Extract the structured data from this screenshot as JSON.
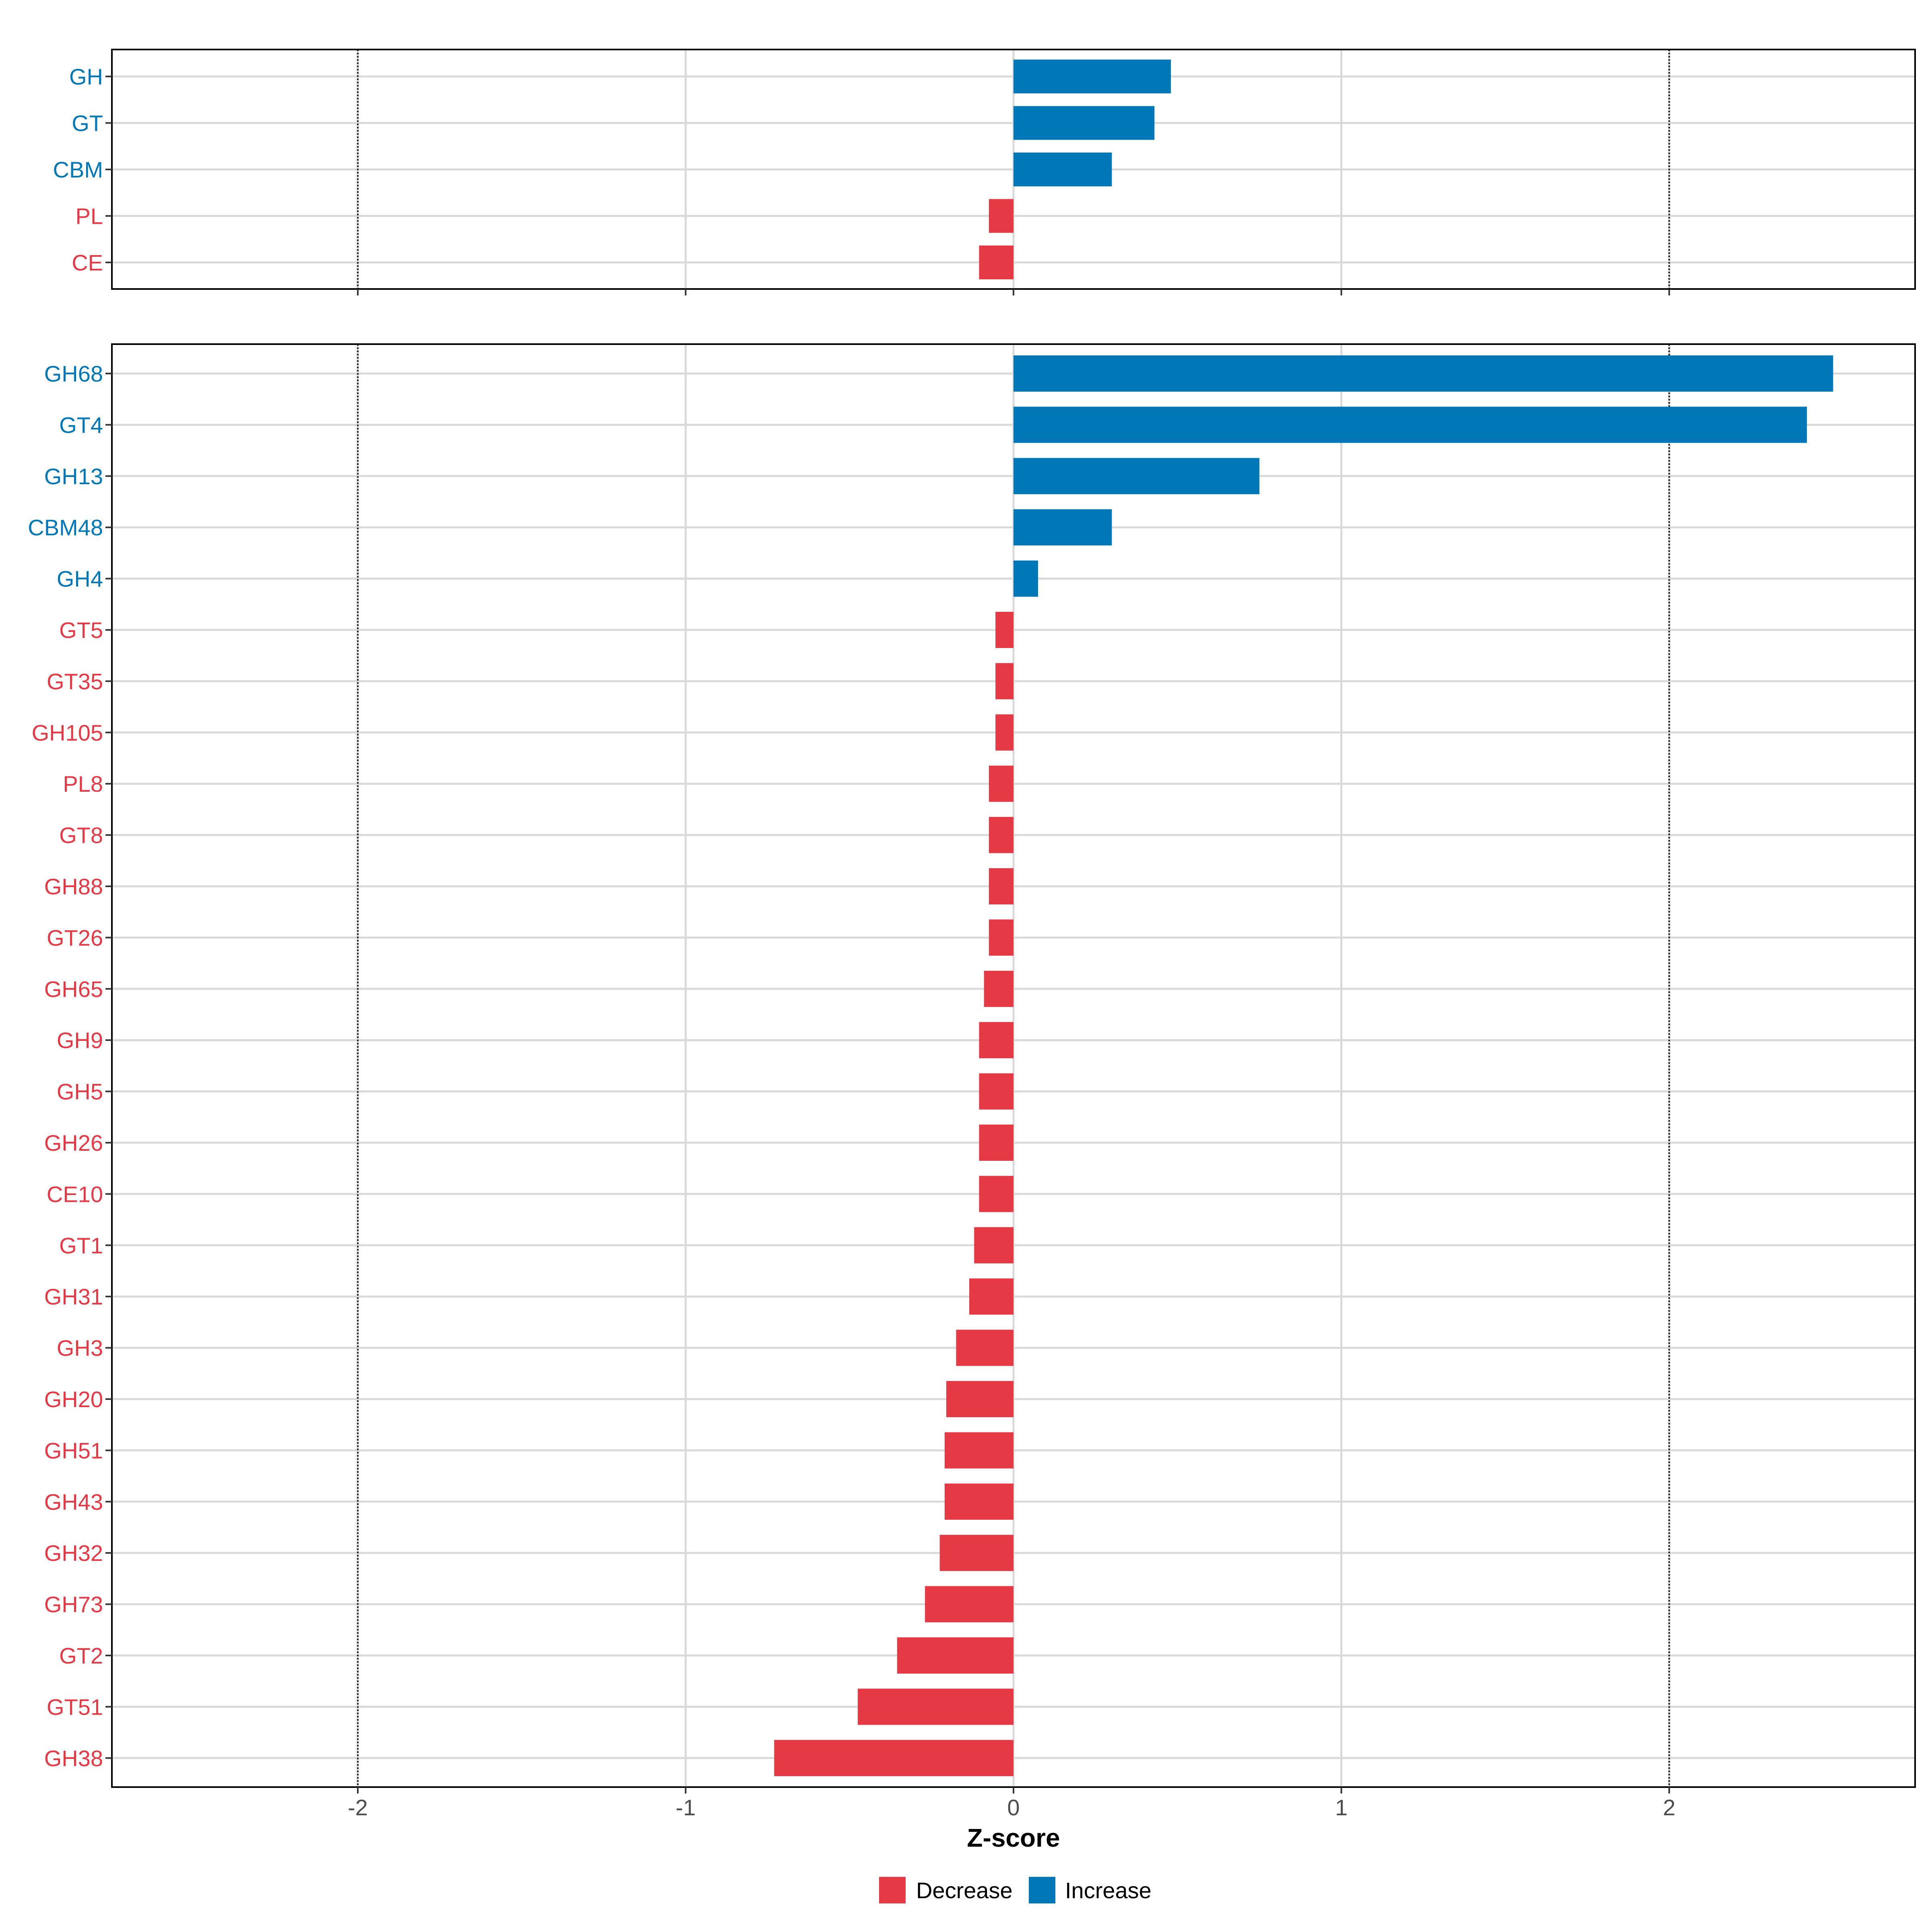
{
  "colors": {
    "decrease": "#E63946",
    "increase": "#0077B6",
    "grid": "#D9D9D9",
    "frame": "#000000"
  },
  "chart_data": {
    "type": "bar",
    "orientation": "horizontal",
    "xlabel": "Z-score",
    "xlim": [
      -2.75,
      2.75
    ],
    "xticks": [
      -2,
      -1,
      0,
      1,
      2
    ],
    "xtick_labels": [
      "-2",
      "-1",
      "0",
      "1",
      "2"
    ],
    "reference_lines": [
      -2,
      2
    ],
    "legend": {
      "placement": "bottom",
      "entries": [
        {
          "label": "Decrease",
          "color_key": "decrease"
        },
        {
          "label": "Increase",
          "color_key": "increase"
        }
      ]
    },
    "panels": [
      {
        "name": "class",
        "categories": [
          "GH",
          "GT",
          "CBM",
          "PL",
          "CE"
        ],
        "values": [
          0.48,
          0.43,
          0.3,
          -0.075,
          -0.105
        ],
        "groups": [
          "Increase",
          "Increase",
          "Increase",
          "Decrease",
          "Decrease"
        ]
      },
      {
        "name": "family",
        "categories": [
          "GH68",
          "GT4",
          "GH13",
          "CBM48",
          "GH4",
          "GT5",
          "GT35",
          "GH105",
          "PL8",
          "GT8",
          "GH88",
          "GT26",
          "GH65",
          "GH9",
          "GH5",
          "GH26",
          "CE10",
          "GT1",
          "GH31",
          "GH3",
          "GH20",
          "GH51",
          "GH43",
          "GH32",
          "GH73",
          "GT2",
          "GT51",
          "GH38"
        ],
        "values": [
          2.5,
          2.42,
          0.75,
          0.3,
          0.075,
          -0.055,
          -0.055,
          -0.055,
          -0.075,
          -0.075,
          -0.075,
          -0.075,
          -0.09,
          -0.105,
          -0.105,
          -0.105,
          -0.105,
          -0.12,
          -0.135,
          -0.175,
          -0.205,
          -0.21,
          -0.21,
          -0.225,
          -0.27,
          -0.355,
          -0.475,
          -0.73
        ],
        "groups": [
          "Increase",
          "Increase",
          "Increase",
          "Increase",
          "Increase",
          "Decrease",
          "Decrease",
          "Decrease",
          "Decrease",
          "Decrease",
          "Decrease",
          "Decrease",
          "Decrease",
          "Decrease",
          "Decrease",
          "Decrease",
          "Decrease",
          "Decrease",
          "Decrease",
          "Decrease",
          "Decrease",
          "Decrease",
          "Decrease",
          "Decrease",
          "Decrease",
          "Decrease",
          "Decrease",
          "Decrease"
        ]
      }
    ]
  }
}
